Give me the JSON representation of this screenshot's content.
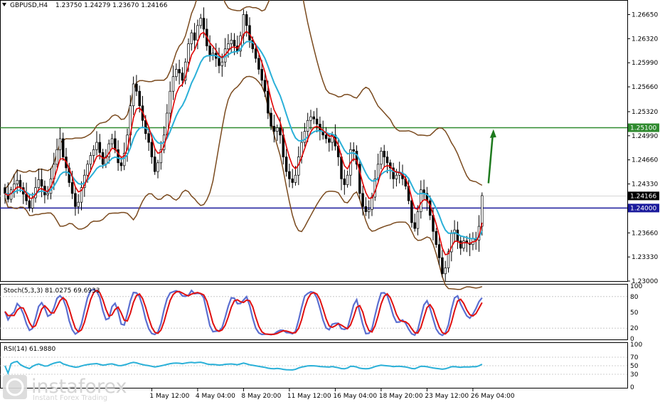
{
  "header": {
    "symbol": "GBPUSD,H4",
    "ohlc": "1.23750 1.24279 1.23670 1.24166"
  },
  "colors": {
    "candle": "#000000",
    "bollinger": "#7a4a1e",
    "ma_fast": "#e00000",
    "ma_slow": "#2ab0d8",
    "support_line": "#1a1a9c",
    "resistance_line": "#2f8a2f",
    "stoch_main": "#5b6fd1",
    "stoch_signal": "#e01010",
    "rsi": "#2ab0d8",
    "arrow": "#1e7a1e"
  },
  "chart_data": [
    {
      "type": "candlestick",
      "title": "GBPUSD,H4",
      "ylim": [
        1.23,
        1.2683
      ],
      "y_ticks": [
        "1.26650",
        "1.26320",
        "1.25990",
        "1.25660",
        "1.25320",
        "1.24990",
        "1.24660",
        "1.24330",
        "1.24000",
        "1.23660",
        "1.23330",
        "1.23000"
      ],
      "price_labels": [
        {
          "name": "resistance",
          "value": "1.25100",
          "price": 1.251
        },
        {
          "name": "current",
          "value": "1.24166",
          "price": 1.24166
        },
        {
          "name": "support",
          "value": "1.24000",
          "price": 1.24
        }
      ],
      "x_labels": [
        "1 May 12:00",
        "4 May 04:00",
        "8 May 20:00",
        "11 May 12:00",
        "16 May 04:00",
        "18 May 20:00",
        "23 May 12:00",
        "26 May 04:00"
      ],
      "x_label_bars": [
        48,
        63,
        78,
        93,
        108,
        123,
        138,
        153
      ],
      "closes": [
        1.242,
        1.2412,
        1.2425,
        1.2433,
        1.2438,
        1.2428,
        1.2419,
        1.241,
        1.24,
        1.2414,
        1.2428,
        1.2439,
        1.243,
        1.2418,
        1.242,
        1.244,
        1.246,
        1.248,
        1.2495,
        1.247,
        1.2455,
        1.2435,
        1.242,
        1.2402,
        1.2408,
        1.2428,
        1.2445,
        1.246,
        1.2472,
        1.248,
        1.249,
        1.2476,
        1.246,
        1.247,
        1.2488,
        1.2495,
        1.248,
        1.2462,
        1.2458,
        1.2475,
        1.25,
        1.254,
        1.257,
        1.256,
        1.254,
        1.252,
        1.2502,
        1.249,
        1.247,
        1.245,
        1.2462,
        1.248,
        1.25,
        1.253,
        1.256,
        1.258,
        1.259,
        1.2585,
        1.2575,
        1.26,
        1.2625,
        1.264,
        1.263,
        1.265,
        1.266,
        1.2645,
        1.2622,
        1.261,
        1.2612,
        1.2605,
        1.2595,
        1.26,
        1.2618,
        1.2625,
        1.263,
        1.2622,
        1.2615,
        1.2636,
        1.2665,
        1.265,
        1.263,
        1.2618,
        1.2605,
        1.259,
        1.2575,
        1.256,
        1.253,
        1.2512,
        1.2505,
        1.251,
        1.25,
        1.247,
        1.245,
        1.244,
        1.2435,
        1.2445,
        1.247,
        1.249,
        1.2505,
        1.252,
        1.2525,
        1.2522,
        1.2515,
        1.2505,
        1.25,
        1.2495,
        1.249,
        1.25,
        1.2485,
        1.247,
        1.244,
        1.2432,
        1.2445,
        1.248,
        1.2478,
        1.246,
        1.242,
        1.2402,
        1.2395,
        1.2398,
        1.2415,
        1.244,
        1.246,
        1.2478,
        1.247,
        1.2462,
        1.2455,
        1.244,
        1.2445,
        1.2448,
        1.244,
        1.243,
        1.241,
        1.238,
        1.2372,
        1.2395,
        1.2425,
        1.242,
        1.241,
        1.239,
        1.2368,
        1.235,
        1.2332,
        1.231,
        1.2318,
        1.234,
        1.2365,
        1.237,
        1.2355,
        1.2345,
        1.2355,
        1.2352,
        1.235,
        1.2358,
        1.2356,
        1.2375,
        1.2417
      ]
    },
    {
      "type": "line",
      "title": "Stoch(5,3,3) 81.0275 69.6933",
      "ylim": [
        0,
        100
      ],
      "y_ticks": [
        "100",
        "80",
        "50",
        "20",
        "0"
      ]
    },
    {
      "type": "line",
      "title": "RSI(14) 61.9880",
      "ylim": [
        0,
        100
      ],
      "y_ticks": [
        "100",
        "70",
        "50",
        "30",
        "0"
      ]
    }
  ],
  "watermark": {
    "brand": "instaforex",
    "tagline": "Instant Forex Trading"
  }
}
